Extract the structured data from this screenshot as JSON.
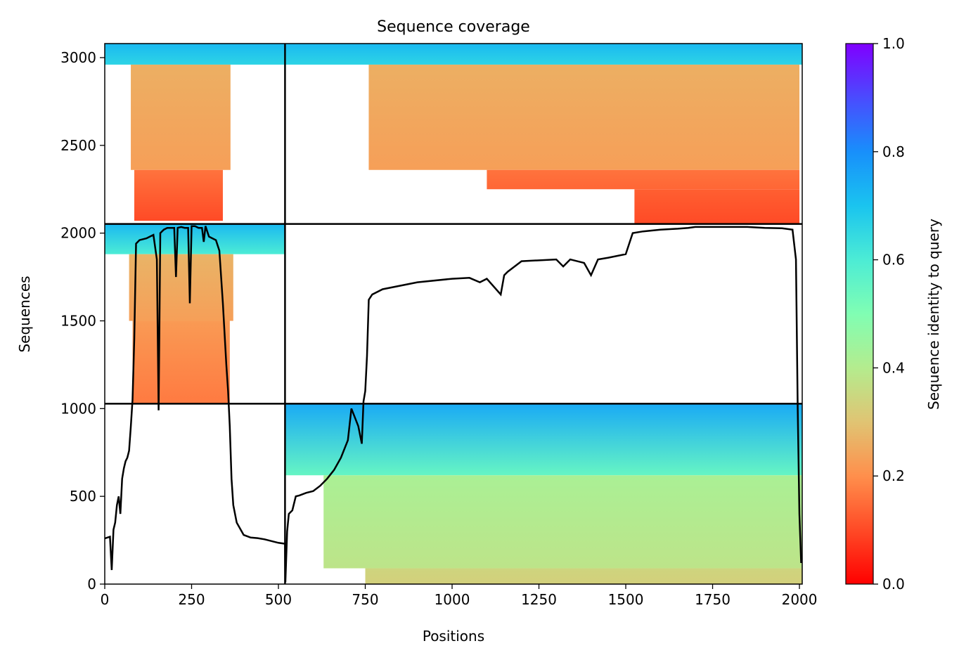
{
  "chart_data": {
    "type": "heatmap",
    "title": "Sequence coverage",
    "xlabel": "Positions",
    "ylabel": "Sequences",
    "xlim": [
      0,
      2008
    ],
    "ylim": [
      0,
      3080
    ],
    "xticks": [
      0,
      250,
      500,
      750,
      1000,
      1250,
      1500,
      1750,
      2000
    ],
    "yticks": [
      0,
      500,
      1000,
      1500,
      2000,
      2500,
      3000
    ],
    "chain_boundaries": {
      "positions": [
        519
      ],
      "sequences": [
        1028,
        2052
      ]
    },
    "colorbar": {
      "label": "Sequence identity to query",
      "colormap": "rainbow_r",
      "range": [
        0.0,
        1.0
      ],
      "ticks": [
        0.0,
        0.2,
        0.4,
        0.6,
        0.8,
        1.0
      ],
      "tick_labels": [
        "0.0",
        "0.2",
        "0.4",
        "0.6",
        "0.8",
        "1.0"
      ]
    },
    "blocks": [
      {
        "name": "chain-1-paired",
        "x": [
          0,
          519
        ],
        "y": [
          2960,
          3080
        ],
        "identity": [
          0.72,
          0.66
        ]
      },
      {
        "name": "chain-1-block-upper",
        "x": [
          75,
          362
        ],
        "y": [
          2360,
          2960
        ],
        "identity": [
          0.26,
          0.23
        ]
      },
      {
        "name": "chain-1-block-lower",
        "x": [
          85,
          340
        ],
        "y": [
          2070,
          2360
        ],
        "identity": [
          0.16,
          0.1
        ]
      },
      {
        "name": "chain-2-paired",
        "x": [
          519,
          2008
        ],
        "y": [
          2960,
          3080
        ],
        "identity": [
          0.72,
          0.66
        ]
      },
      {
        "name": "chain-2-block-upper",
        "x": [
          760,
          2000
        ],
        "y": [
          2360,
          2960
        ],
        "identity": [
          0.26,
          0.23
        ]
      },
      {
        "name": "chain-2-block-mid",
        "x": [
          1100,
          2000
        ],
        "y": [
          2250,
          2360
        ],
        "identity": [
          0.16,
          0.14
        ]
      },
      {
        "name": "chain-2-block-lower",
        "x": [
          1525,
          2000
        ],
        "y": [
          2052,
          2250
        ],
        "identity": [
          0.13,
          0.1
        ]
      },
      {
        "name": "chain-1-unpaired-top",
        "x": [
          0,
          519
        ],
        "y": [
          1880,
          2052
        ],
        "identity": [
          0.72,
          0.6
        ]
      },
      {
        "name": "chain-1-unpaired-mid",
        "x": [
          70,
          370
        ],
        "y": [
          1500,
          1880
        ],
        "identity": [
          0.27,
          0.23
        ]
      },
      {
        "name": "chain-1-unpaired-low",
        "x": [
          80,
          360
        ],
        "y": [
          1028,
          1500
        ],
        "identity": [
          0.22,
          0.17
        ]
      },
      {
        "name": "chain-2-unpaired-top",
        "x": [
          519,
          2008
        ],
        "y": [
          620,
          1028
        ],
        "identity": [
          0.75,
          0.55
        ]
      },
      {
        "name": "chain-2-unpaired-mid",
        "x": [
          630,
          2008
        ],
        "y": [
          90,
          620
        ],
        "identity": [
          0.42,
          0.38
        ]
      },
      {
        "name": "chain-2-unpaired-low",
        "x": [
          750,
          2008
        ],
        "y": [
          0,
          90
        ],
        "identity": [
          0.34,
          0.33
        ]
      }
    ],
    "coverage_line": {
      "x": [
        0,
        15,
        20,
        25,
        30,
        35,
        40,
        45,
        50,
        55,
        60,
        65,
        70,
        75,
        80,
        85,
        90,
        100,
        120,
        130,
        140,
        150,
        155,
        160,
        170,
        180,
        200,
        205,
        210,
        220,
        230,
        240,
        245,
        250,
        260,
        270,
        280,
        285,
        290,
        300,
        310,
        320,
        330,
        340,
        350,
        355,
        360,
        365,
        370,
        380,
        400,
        420,
        440,
        460,
        480,
        500,
        519,
        520,
        525,
        530,
        540,
        550,
        560,
        580,
        600,
        620,
        640,
        660,
        680,
        700,
        710,
        720,
        730,
        740,
        745,
        750,
        755,
        760,
        770,
        800,
        900,
        1000,
        1050,
        1080,
        1100,
        1140,
        1150,
        1160,
        1200,
        1300,
        1320,
        1340,
        1380,
        1400,
        1420,
        1450,
        1500,
        1520,
        1550,
        1600,
        1650,
        1680,
        1700,
        1750,
        1800,
        1850,
        1900,
        1950,
        1980,
        1990,
        1995,
        2000,
        2005
      ],
      "y": [
        260,
        270,
        80,
        310,
        350,
        450,
        500,
        400,
        600,
        660,
        700,
        720,
        760,
        900,
        1050,
        1400,
        1940,
        1960,
        1970,
        1980,
        1990,
        1850,
        990,
        2000,
        2020,
        2030,
        2030,
        1750,
        2030,
        2035,
        2030,
        2030,
        1600,
        2040,
        2040,
        2030,
        2030,
        1950,
        2040,
        1980,
        1970,
        1960,
        1900,
        1600,
        1250,
        1100,
        900,
        600,
        450,
        350,
        280,
        265,
        262,
        255,
        245,
        235,
        230,
        10,
        300,
        400,
        420,
        500,
        505,
        520,
        530,
        560,
        600,
        650,
        720,
        820,
        1000,
        950,
        900,
        800,
        1040,
        1100,
        1300,
        1620,
        1650,
        1680,
        1720,
        1740,
        1745,
        1720,
        1740,
        1650,
        1760,
        1780,
        1840,
        1850,
        1810,
        1850,
        1830,
        1760,
        1850,
        1860,
        1880,
        2000,
        2010,
        2020,
        2025,
        2030,
        2035,
        2035,
        2035,
        2035,
        2030,
        2028,
        2020,
        1850,
        1000,
        400,
        120
      ]
    }
  }
}
